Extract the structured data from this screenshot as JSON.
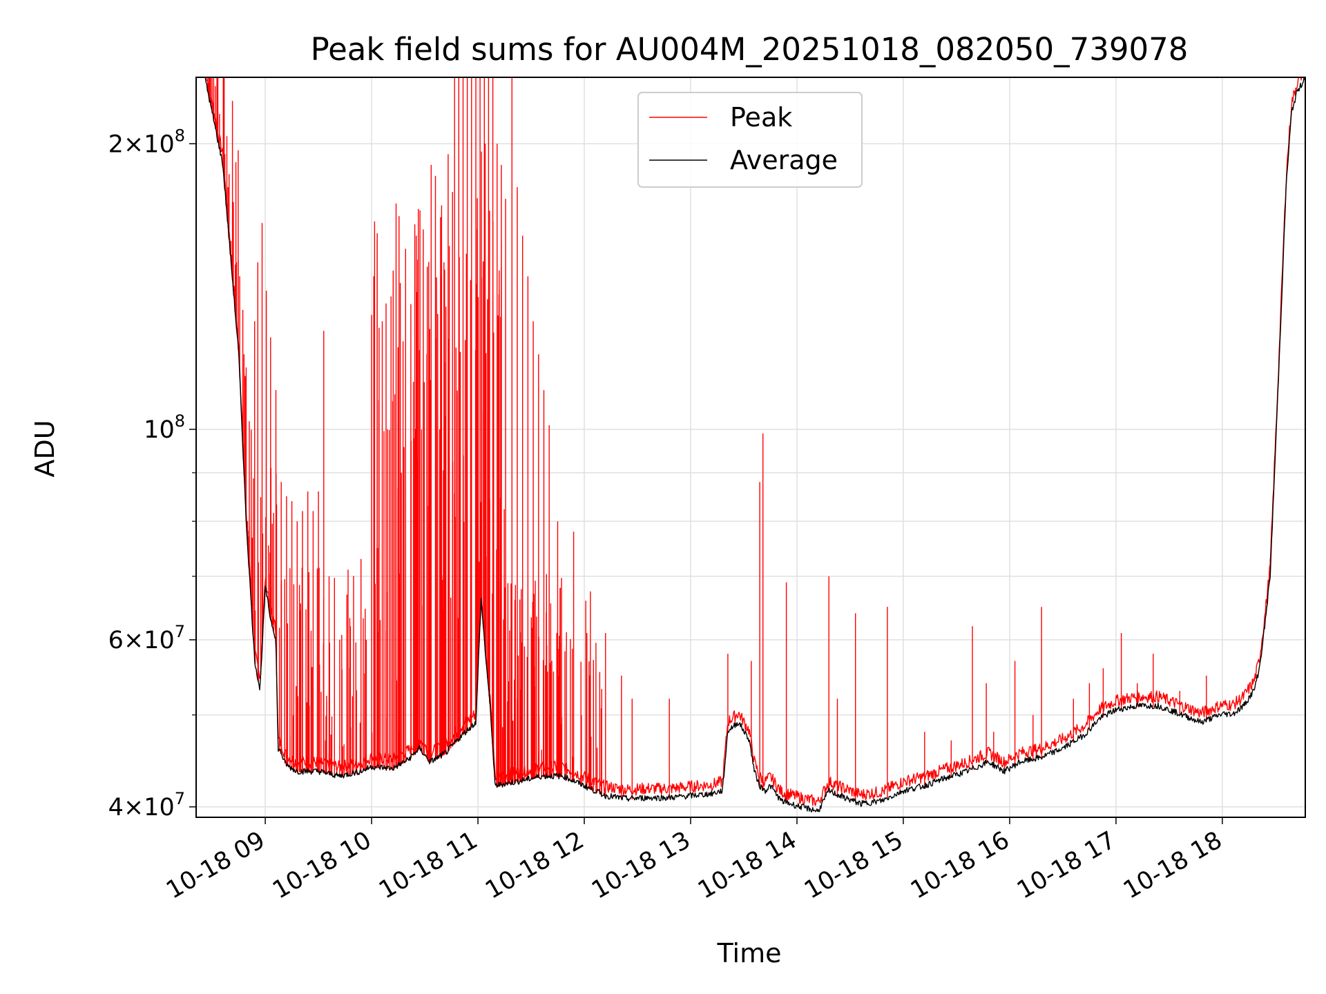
{
  "chart_data": {
    "type": "line",
    "title": "Peak field sums for AU004M_20251018_082050_739078",
    "xlabel": "Time",
    "ylabel": "ADU",
    "yscale": "log",
    "ylim": [
      39000000,
      235000000
    ],
    "xlim": [
      8.35,
      18.78
    ],
    "grid": true,
    "x_ticks": [
      {
        "value": 9,
        "label": "10-18 09"
      },
      {
        "value": 10,
        "label": "10-18 10"
      },
      {
        "value": 11,
        "label": "10-18 11"
      },
      {
        "value": 12,
        "label": "10-18 12"
      },
      {
        "value": 13,
        "label": "10-18 13"
      },
      {
        "value": 14,
        "label": "10-18 14"
      },
      {
        "value": 15,
        "label": "10-18 15"
      },
      {
        "value": 16,
        "label": "10-18 16"
      },
      {
        "value": 17,
        "label": "10-18 17"
      },
      {
        "value": 18,
        "label": "10-18 18"
      }
    ],
    "y_ticks": [
      {
        "value": 40000000,
        "mant": "4",
        "exp": "7"
      },
      {
        "value": 60000000,
        "mant": "6",
        "exp": "7"
      },
      {
        "value": 100000000,
        "mant": "",
        "exp": "8"
      },
      {
        "value": 200000000,
        "mant": "2",
        "exp": "8"
      }
    ],
    "y_minor_ticks": [
      50000000,
      70000000,
      80000000,
      90000000
    ],
    "legend": {
      "position": "top-center",
      "entries": [
        {
          "name": "Peak",
          "color": "#ff0000"
        },
        {
          "name": "Average",
          "color": "#000000"
        }
      ]
    },
    "series": [
      {
        "name": "Average",
        "color": "#000000",
        "x": [
          8.43,
          8.6,
          8.75,
          8.82,
          8.9,
          8.95,
          9.0,
          9.05,
          9.1,
          9.12,
          9.15,
          9.18,
          9.22,
          9.3,
          9.5,
          9.7,
          9.9,
          10.0,
          10.2,
          10.35,
          10.45,
          10.55,
          10.7,
          10.85,
          10.98,
          11.03,
          11.07,
          11.12,
          11.16,
          11.25,
          11.4,
          11.6,
          11.8,
          12.0,
          12.2,
          12.4,
          12.6,
          12.8,
          13.0,
          13.2,
          13.3,
          13.35,
          13.45,
          13.55,
          13.6,
          13.65,
          13.7,
          13.75,
          13.85,
          14.0,
          14.2,
          14.3,
          14.4,
          14.6,
          14.8,
          15.0,
          15.2,
          15.4,
          15.6,
          15.8,
          15.95,
          16.1,
          16.3,
          16.5,
          16.7,
          16.85,
          17.0,
          17.2,
          17.4,
          17.6,
          17.8,
          17.9,
          18.0,
          18.1,
          18.2,
          18.3,
          18.35,
          18.4,
          18.45,
          18.5,
          18.55,
          18.6,
          18.65,
          18.7,
          18.75,
          18.78
        ],
        "y": [
          235000000,
          190000000,
          120000000,
          80000000,
          57000000,
          53000000,
          68000000,
          63000000,
          60000000,
          46000000,
          45500000,
          44500000,
          44000000,
          43500000,
          43500000,
          43000000,
          43500000,
          44000000,
          43800000,
          44800000,
          46000000,
          44500000,
          45500000,
          47500000,
          49000000,
          66000000,
          58000000,
          50000000,
          42000000,
          42200000,
          42500000,
          43000000,
          43000000,
          42000000,
          41000000,
          40700000,
          40800000,
          40800000,
          41000000,
          41200000,
          41500000,
          48000000,
          49000000,
          47000000,
          43500000,
          42000000,
          41500000,
          42000000,
          40500000,
          40000000,
          39500000,
          41500000,
          41000000,
          40200000,
          40500000,
          41500000,
          42000000,
          42800000,
          43500000,
          44500000,
          43500000,
          44500000,
          45000000,
          46000000,
          47500000,
          49500000,
          50500000,
          51000000,
          51000000,
          50000000,
          49000000,
          49500000,
          50000000,
          50000000,
          51000000,
          53000000,
          56000000,
          62000000,
          70000000,
          95000000,
          130000000,
          180000000,
          215000000,
          226000000,
          231000000,
          235000000
        ]
      },
      {
        "name": "Peak",
        "color": "#ff0000",
        "spikes": [
          [
            8.47,
            235000000
          ],
          [
            8.5,
            230000000
          ],
          [
            8.53,
            230000000
          ],
          [
            8.57,
            215000000
          ],
          [
            8.62,
            195000000
          ],
          [
            8.65,
            180000000
          ],
          [
            8.7,
            165000000
          ],
          [
            8.73,
            150000000
          ],
          [
            8.76,
            145000000
          ],
          [
            8.8,
            120000000
          ],
          [
            8.85,
            102000000
          ],
          [
            8.9,
            130000000
          ],
          [
            8.93,
            150000000
          ],
          [
            8.97,
            165000000
          ],
          [
            9.01,
            140000000
          ],
          [
            9.05,
            125000000
          ],
          [
            9.1,
            110000000
          ],
          [
            9.15,
            88000000
          ],
          [
            9.2,
            85000000
          ],
          [
            9.25,
            84000000
          ],
          [
            9.3,
            80000000
          ],
          [
            9.35,
            82000000
          ],
          [
            9.4,
            86000000
          ],
          [
            9.45,
            82000000
          ],
          [
            9.5,
            86000000
          ],
          [
            9.55,
            127000000
          ],
          [
            9.6,
            70000000
          ],
          [
            9.7,
            60000000
          ],
          [
            9.8,
            62000000
          ],
          [
            9.9,
            73000000
          ],
          [
            9.95,
            60000000
          ],
          [
            10.0,
            132000000
          ],
          [
            10.05,
            75000000
          ],
          [
            10.1,
            130000000
          ],
          [
            10.15,
            100000000
          ],
          [
            10.2,
            100000000
          ],
          [
            10.23,
            173000000
          ],
          [
            10.28,
            90000000
          ],
          [
            10.32,
            155000000
          ],
          [
            10.37,
            95000000
          ],
          [
            10.42,
            160000000
          ],
          [
            10.47,
            100000000
          ],
          [
            10.52,
            120000000
          ],
          [
            10.56,
            190000000
          ],
          [
            10.6,
            185000000
          ],
          [
            10.64,
            100000000
          ],
          [
            10.68,
            150000000
          ],
          [
            10.72,
            195000000
          ],
          [
            10.78,
            235000000
          ],
          [
            10.82,
            235000000
          ],
          [
            10.86,
            235000000
          ],
          [
            10.9,
            235000000
          ],
          [
            10.94,
            235000000
          ],
          [
            10.98,
            235000000
          ],
          [
            11.02,
            235000000
          ],
          [
            11.06,
            235000000
          ],
          [
            11.1,
            235000000
          ],
          [
            11.14,
            235000000
          ],
          [
            11.18,
            200000000
          ],
          [
            11.22,
            190000000
          ],
          [
            11.26,
            175000000
          ],
          [
            11.32,
            235000000
          ],
          [
            11.37,
            180000000
          ],
          [
            11.42,
            160000000
          ],
          [
            11.47,
            145000000
          ],
          [
            11.52,
            130000000
          ],
          [
            11.57,
            120000000
          ],
          [
            11.62,
            110000000
          ],
          [
            11.67,
            101000000
          ],
          [
            11.75,
            80000000
          ],
          [
            11.9,
            78000000
          ],
          [
            12.05,
            55000000
          ],
          [
            12.2,
            61000000
          ],
          [
            12.35,
            55000000
          ],
          [
            12.45,
            52000000
          ],
          [
            12.8,
            52000000
          ],
          [
            13.35,
            58000000
          ],
          [
            13.57,
            57000000
          ],
          [
            13.65,
            88000000
          ],
          [
            13.68,
            99000000
          ],
          [
            13.9,
            69000000
          ],
          [
            14.3,
            70000000
          ],
          [
            14.38,
            52000000
          ],
          [
            14.55,
            64000000
          ],
          [
            14.85,
            65000000
          ],
          [
            15.2,
            48000000
          ],
          [
            15.45,
            47000000
          ],
          [
            15.65,
            62000000
          ],
          [
            15.78,
            54000000
          ],
          [
            15.85,
            48000000
          ],
          [
            16.05,
            57000000
          ],
          [
            16.22,
            50000000
          ],
          [
            16.3,
            65000000
          ],
          [
            16.6,
            52000000
          ],
          [
            16.75,
            54000000
          ],
          [
            16.88,
            56000000
          ],
          [
            17.05,
            61000000
          ],
          [
            17.2,
            54000000
          ],
          [
            17.35,
            58000000
          ],
          [
            17.6,
            53000000
          ],
          [
            17.85,
            55000000
          ],
          [
            18.1,
            50000000
          ],
          [
            18.45,
            73000000
          ]
        ]
      }
    ]
  }
}
